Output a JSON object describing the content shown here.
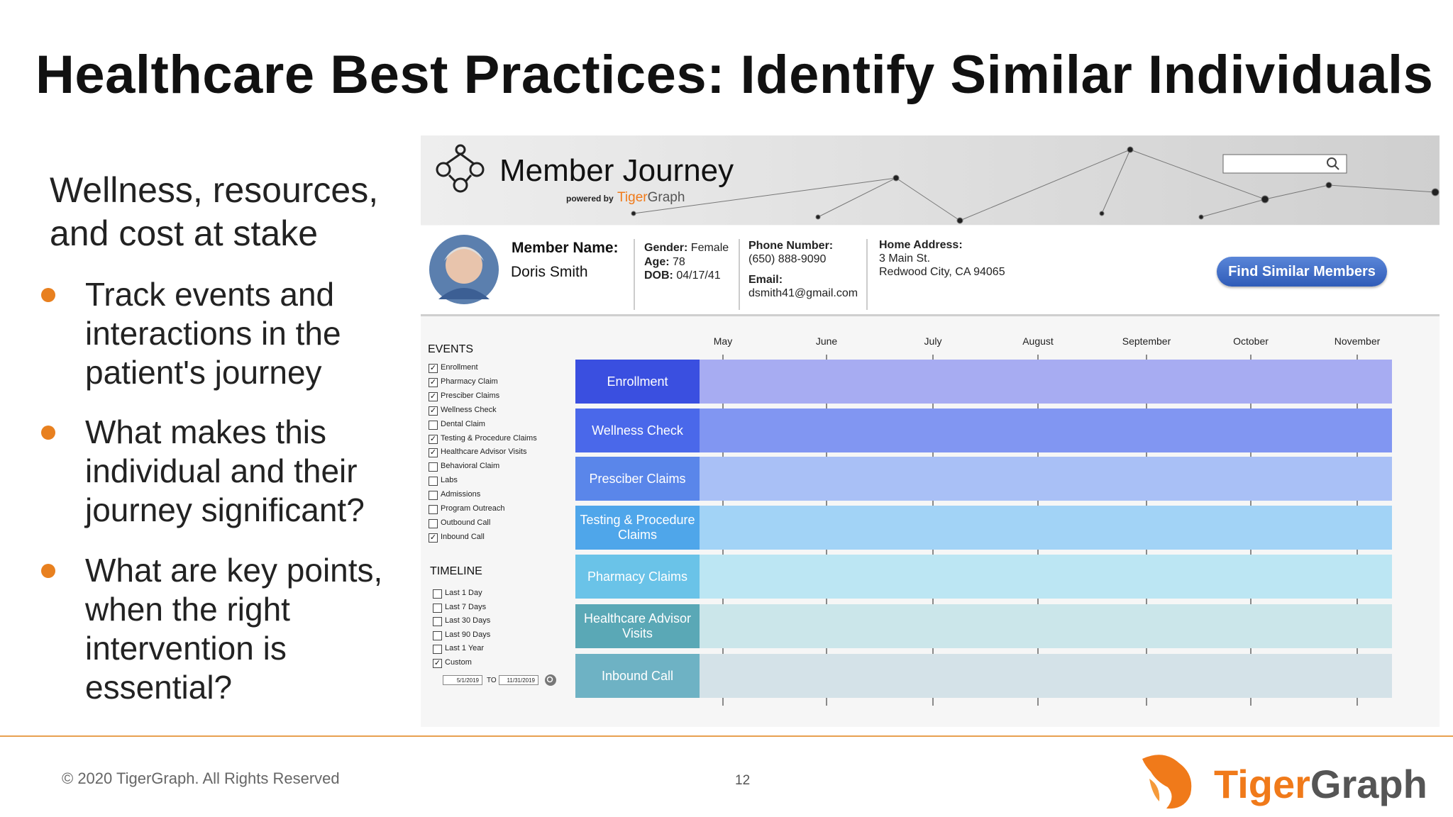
{
  "title": "Healthcare Best Practices: Identify Similar Individuals",
  "intro": "Wellness, resources, and cost at stake",
  "bullets": [
    "Track events and interactions in the patient's journey",
    "What makes this individual and their journey significant?",
    "What are key points, when the right intervention is essential?"
  ],
  "app": {
    "title": "Member Journey",
    "powered_by": "powered by",
    "brand": [
      "Tiger",
      "Graph"
    ],
    "member": {
      "name_label": "Member Name:",
      "name": "Doris Smith",
      "gender_label": "Gender:",
      "gender": "Female",
      "age_label": "Age:",
      "age": 78,
      "dob_label": "DOB:",
      "dob": "04/17/41",
      "phone_label": "Phone Number:",
      "phone": "(650) 888-9090",
      "email_label": "Email:",
      "email": "dsmith41@gmail.com",
      "address_label": "Home Address:",
      "address_lines": [
        "3 Main St.",
        "Redwood City, CA 94065"
      ]
    },
    "button": "Find Similar Members",
    "events_title": "EVENTS",
    "events": [
      {
        "label": "Enrollment",
        "checked": true
      },
      {
        "label": "Pharmacy Claim",
        "checked": true
      },
      {
        "label": "Presciber Claims",
        "checked": true
      },
      {
        "label": "Wellness Check",
        "checked": true
      },
      {
        "label": "Dental Claim",
        "checked": false
      },
      {
        "label": "Testing & Procedure Claims",
        "checked": true
      },
      {
        "label": "Healthcare Advisor Visits",
        "checked": true
      },
      {
        "label": "Behavioral Claim",
        "checked": false
      },
      {
        "label": "Labs",
        "checked": false
      },
      {
        "label": "Admissions",
        "checked": false
      },
      {
        "label": "Program Outreach",
        "checked": false
      },
      {
        "label": "Outbound Call",
        "checked": false
      },
      {
        "label": "Inbound Call",
        "checked": true
      }
    ],
    "timeline_title": "TIMELINE",
    "timeline_options": [
      {
        "label": "Last 1 Day",
        "checked": false
      },
      {
        "label": "Last 7 Days",
        "checked": false
      },
      {
        "label": "Last 30 Days",
        "checked": false
      },
      {
        "label": "Last 90 Days",
        "checked": false
      },
      {
        "label": "Last 1 Year",
        "checked": false
      },
      {
        "label": "Custom",
        "checked": true
      }
    ],
    "date_from": "5/1/2019",
    "date_to_label": "TO",
    "date_to": "11/31/2019",
    "months": [
      "May",
      "June",
      "July",
      "August",
      "September",
      "October",
      "November"
    ],
    "rows": [
      {
        "label": "Enrollment",
        "label_color": "#3a4fe0",
        "band_color": "#a7acf2",
        "icon_color": "#3a4fe0"
      },
      {
        "label": "Wellness Check",
        "label_color": "#4a68ea",
        "band_color": "#8196f2",
        "icon_color": "#3d55d8"
      },
      {
        "label": "Presciber Claims",
        "label_color": "#5a86ea",
        "band_color": "#a9c0f6",
        "icon_color": "#4d7ae6"
      },
      {
        "label": "Testing & Procedure Claims",
        "label_color": "#4fa6ea",
        "band_color": "#a2d3f6",
        "icon_color": "#3d96e6"
      },
      {
        "label": "Pharmacy Claims",
        "label_color": "#6ac3e8",
        "band_color": "#bce6f3",
        "icon_color": "#62b9e6"
      },
      {
        "label": "Healthcare Advisor Visits",
        "label_color": "#5aa8b6",
        "band_color": "#cbe6ea",
        "icon_color": "#6fb0ba"
      },
      {
        "label": "Inbound Call",
        "label_color": "#6eb2c4",
        "band_color": "#d4e2e8",
        "icon_color": "#5faec0"
      }
    ]
  },
  "footer": {
    "copyright": "© 2020 TigerGraph. All Rights Reserved",
    "page": 12,
    "logo": [
      "Tiger",
      "Graph"
    ]
  }
}
